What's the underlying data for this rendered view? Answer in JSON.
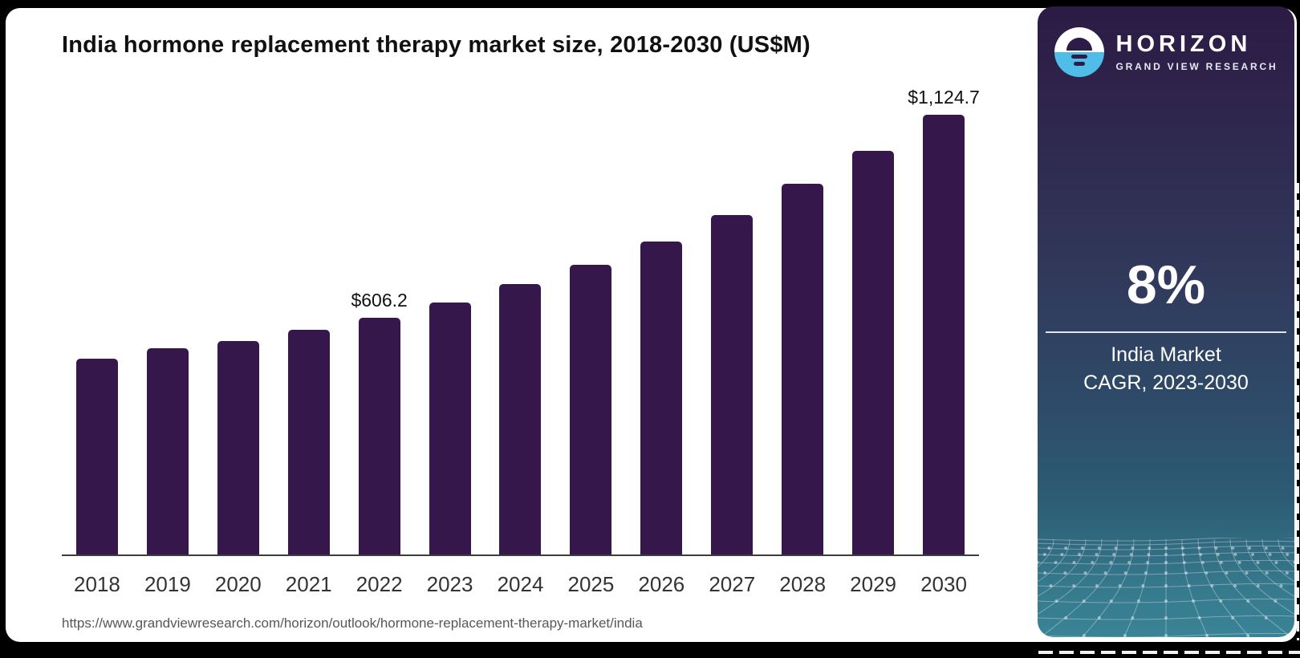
{
  "title": "India hormone replacement therapy market size, 2018-2030 (US$M)",
  "source_url": "https://www.grandviewresearch.com/horizon/outlook/hormone-replacement-therapy-market/india",
  "chart_data": {
    "type": "bar",
    "title": "India hormone replacement therapy market size, 2018-2030 (US$M)",
    "categories": [
      "2018",
      "2019",
      "2020",
      "2021",
      "2022",
      "2023",
      "2024",
      "2025",
      "2026",
      "2027",
      "2028",
      "2029",
      "2030"
    ],
    "values": [
      501,
      528,
      546,
      575,
      606.2,
      644,
      691,
      740,
      800,
      868,
      948,
      1032,
      1124.7
    ],
    "data_labels": [
      null,
      null,
      null,
      null,
      "$606.2",
      null,
      null,
      null,
      null,
      null,
      null,
      null,
      "$1,124.7"
    ],
    "values_note": "only the 2022 and 2030 bars carry printed labels; remaining values estimated from bar heights",
    "xlabel": "",
    "ylabel": "US$M",
    "ylim": [
      0,
      1180
    ],
    "grid": false,
    "legend_position": "none"
  },
  "panel": {
    "brand": "HORIZON",
    "brand_sub": "GRAND VIEW RESEARCH",
    "stat_value": "8%",
    "caption_line1": "India Market",
    "caption_line2": "CAGR, 2023-2030",
    "logo_icon": "sunrise-horizon-icon"
  },
  "colors": {
    "bar": "#36174B",
    "logo_blue": "#4FBDE8",
    "logo_dark": "#2D1C46",
    "panel_gradient_top": "#2C1B44",
    "panel_gradient_bottom": "#3A8396",
    "card_bg": "#FFFFFF",
    "page_bg": "#000000"
  }
}
